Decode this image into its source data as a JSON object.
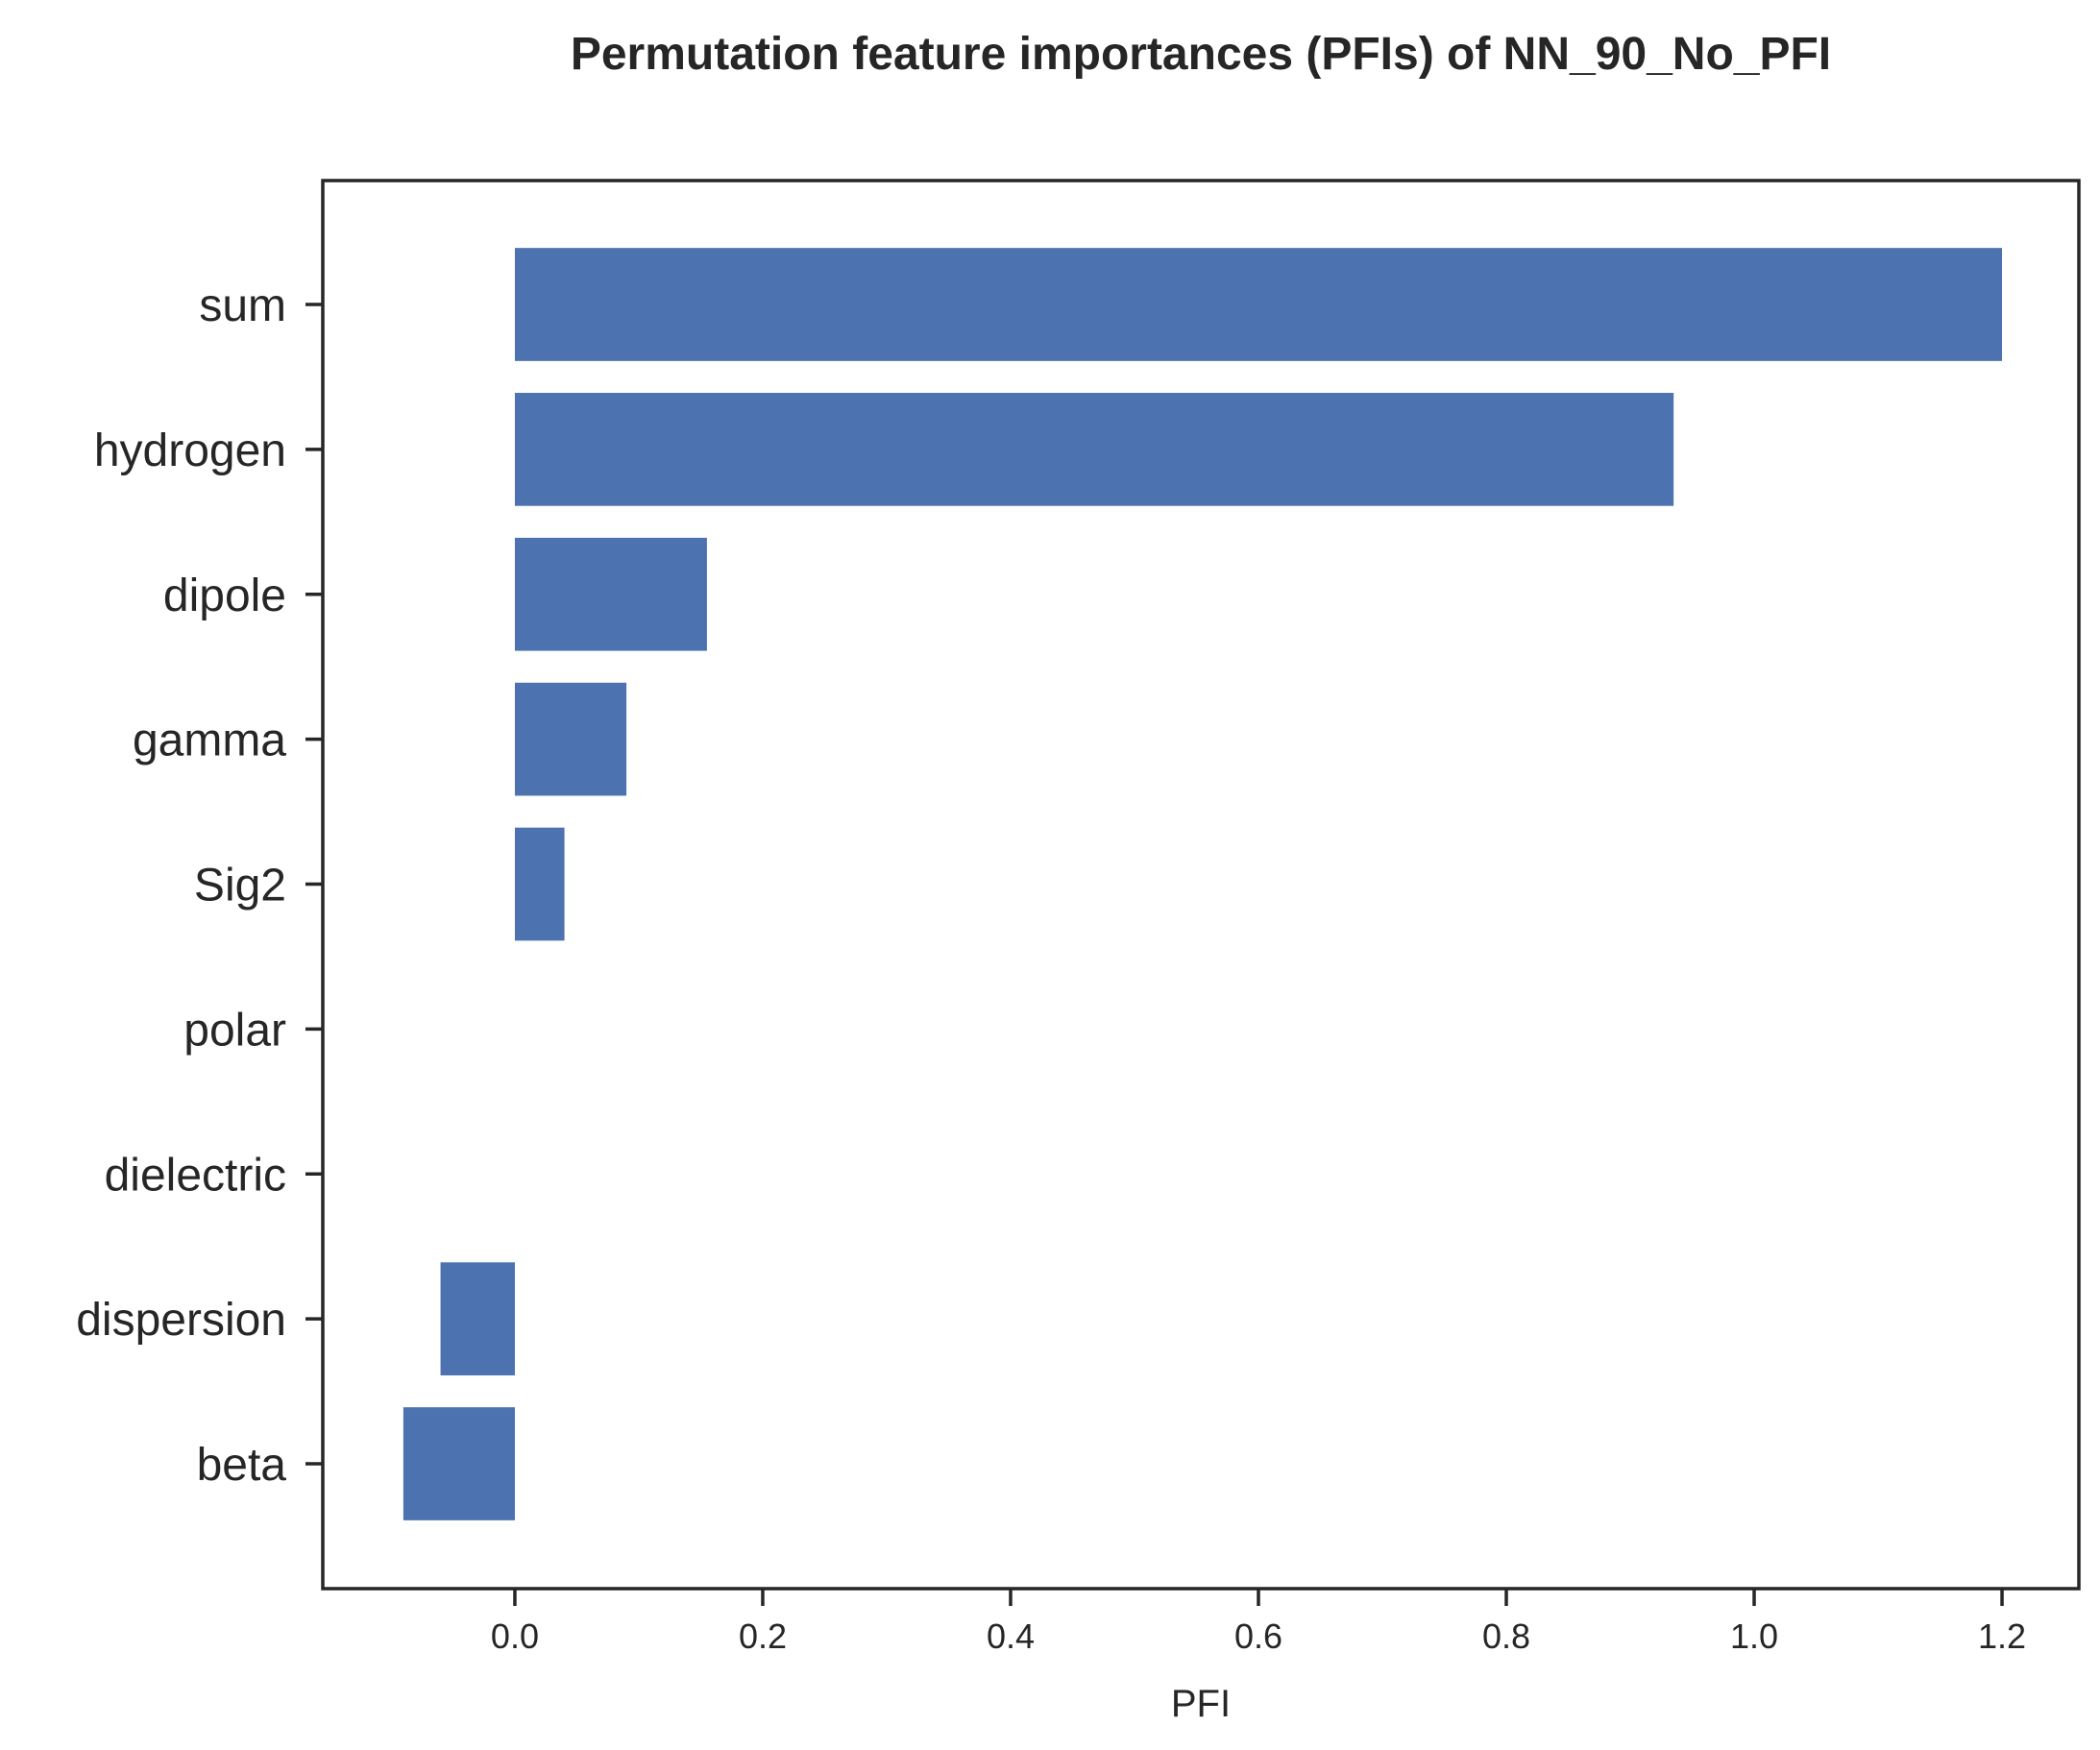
{
  "chart_data": {
    "type": "bar",
    "orientation": "horizontal",
    "title": "Permutation feature importances (PFIs) of NN_90_No_PFI",
    "xlabel": "PFI",
    "ylabel": "",
    "categories": [
      "sum",
      "hydrogen",
      "dipole",
      "gamma",
      "Sig2",
      "polar",
      "dielectric",
      "dispersion",
      "beta"
    ],
    "values": [
      1.2,
      0.935,
      0.155,
      0.09,
      0.04,
      0.0,
      0.0,
      -0.06,
      -0.09
    ],
    "xlim": [
      -0.155,
      1.262
    ],
    "xticks": [
      0.0,
      0.2,
      0.4,
      0.6,
      0.8,
      1.0,
      1.2
    ],
    "xtick_labels": [
      "0.0",
      "0.2",
      "0.4",
      "0.6",
      "0.8",
      "1.0",
      "1.2"
    ],
    "bar_color": "#4c72b0",
    "axis_color": "#262626",
    "grid": false,
    "legend": "none"
  }
}
